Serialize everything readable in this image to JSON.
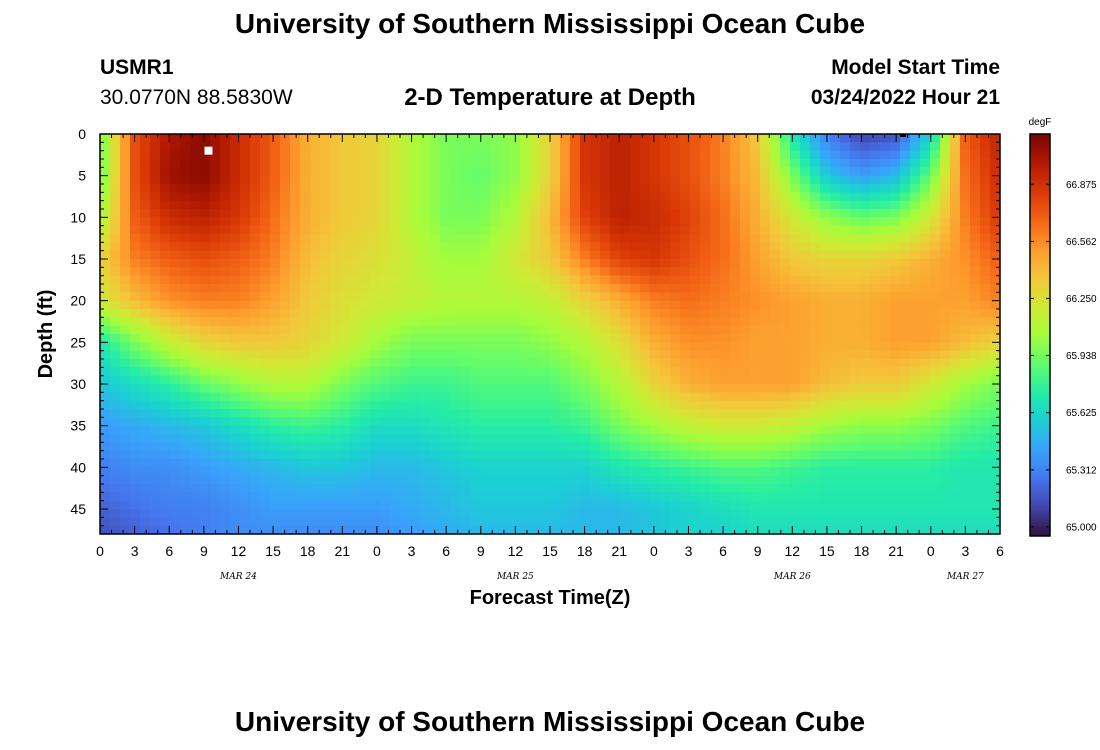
{
  "header": {
    "title": "University of Southern Mississippi Ocean Cube",
    "station_name": "USMR1",
    "station_coords": "30.0770N  88.5830W",
    "subtitle": "2-D Temperature at Depth",
    "model_start_label": "Model Start Time",
    "model_start_time": "03/24/2022 Hour 21"
  },
  "footer": {
    "title": "University of Southern Mississippi Ocean Cube"
  },
  "chart_data": {
    "type": "heatmap",
    "title": "2-D Temperature at Depth",
    "xlabel": "Forecast Time(Z)",
    "ylabel": "Depth (ft)",
    "x_tick_labels": [
      "0",
      "3",
      "6",
      "9",
      "12",
      "15",
      "18",
      "21",
      "0",
      "3",
      "6",
      "9",
      "12",
      "15",
      "18",
      "21",
      "0",
      "3",
      "6",
      "9",
      "12",
      "15",
      "18",
      "21",
      "0",
      "3",
      "6"
    ],
    "x_range_hours": [
      0,
      78
    ],
    "date_labels": [
      {
        "label": "MAR 24",
        "hour": 12
      },
      {
        "label": "MAR 25",
        "hour": 36
      },
      {
        "label": "MAR 26",
        "hour": 60
      },
      {
        "label": "MAR 27",
        "hour": 75
      }
    ],
    "y_tick_labels": [
      "0",
      "5",
      "10",
      "15",
      "20",
      "25",
      "30",
      "35",
      "40",
      "45"
    ],
    "y_tick_values": [
      0,
      5,
      10,
      15,
      20,
      25,
      30,
      35,
      40,
      45
    ],
    "ylim": [
      0,
      48
    ],
    "y_inverted": true,
    "colorbar": {
      "unit": "degF",
      "ticks": [
        "66.875",
        "66.562",
        "66.250",
        "65.938",
        "65.625",
        "65.312",
        "65.000"
      ],
      "range": [
        64.95,
        67.15
      ],
      "colors": [
        "#30123b",
        "#4145ab",
        "#4675ed",
        "#39a2fc",
        "#1bcfd4",
        "#24eca6",
        "#61fc6c",
        "#a4fc3b",
        "#d1e834",
        "#f3c63a",
        "#fe9b2d",
        "#f36315",
        "#d93806",
        "#b11901",
        "#7a0402"
      ]
    },
    "temperature_grid": {
      "x_hours": [
        0,
        3,
        6,
        9,
        12,
        15,
        18,
        21,
        24,
        27,
        30,
        33,
        36,
        39,
        42,
        45,
        48,
        51,
        54,
        57,
        60,
        63,
        66,
        69,
        72,
        75,
        78
      ],
      "depths_ft": [
        0,
        5,
        10,
        15,
        20,
        25,
        30,
        35,
        40,
        45,
        48
      ],
      "values_degF": [
        [
          65.9,
          66.75,
          67.0,
          67.1,
          66.9,
          66.7,
          66.45,
          66.35,
          66.3,
          66.1,
          65.95,
          65.95,
          66.0,
          66.3,
          66.85,
          66.95,
          66.85,
          66.75,
          66.6,
          66.35,
          65.7,
          65.3,
          65.1,
          65.15,
          65.6,
          66.7,
          66.95
        ],
        [
          65.9,
          66.75,
          67.05,
          67.1,
          66.9,
          66.7,
          66.45,
          66.35,
          66.3,
          66.1,
          65.95,
          65.9,
          66.0,
          66.3,
          66.85,
          66.95,
          66.85,
          66.75,
          66.6,
          66.4,
          65.95,
          65.55,
          65.4,
          65.5,
          65.9,
          66.65,
          66.9
        ],
        [
          66.05,
          66.7,
          66.9,
          66.95,
          66.85,
          66.65,
          66.45,
          66.35,
          66.3,
          66.1,
          65.95,
          65.95,
          66.1,
          66.4,
          66.8,
          66.95,
          66.9,
          66.8,
          66.65,
          66.45,
          66.2,
          66.0,
          65.9,
          65.95,
          66.2,
          66.6,
          66.85
        ],
        [
          66.3,
          66.6,
          66.7,
          66.75,
          66.7,
          66.6,
          66.4,
          66.3,
          66.25,
          66.15,
          66.05,
          66.05,
          66.2,
          66.35,
          66.6,
          66.8,
          66.85,
          66.75,
          66.65,
          66.5,
          66.35,
          66.3,
          66.3,
          66.35,
          66.45,
          66.55,
          66.7
        ],
        [
          66.2,
          66.4,
          66.55,
          66.6,
          66.6,
          66.5,
          66.35,
          66.25,
          66.2,
          66.15,
          66.1,
          66.1,
          66.1,
          66.15,
          66.3,
          66.45,
          66.6,
          66.65,
          66.6,
          66.55,
          66.5,
          66.45,
          66.45,
          66.5,
          66.5,
          66.5,
          66.6
        ],
        [
          65.7,
          65.95,
          66.15,
          66.3,
          66.35,
          66.35,
          66.3,
          66.2,
          66.05,
          65.95,
          65.95,
          65.95,
          65.95,
          66.0,
          66.1,
          66.25,
          66.45,
          66.55,
          66.55,
          66.5,
          66.5,
          66.45,
          66.45,
          66.5,
          66.5,
          66.4,
          66.3
        ],
        [
          65.55,
          65.65,
          65.75,
          65.9,
          66.0,
          66.1,
          66.1,
          65.95,
          65.85,
          65.8,
          65.8,
          65.85,
          65.85,
          65.85,
          65.95,
          66.1,
          66.3,
          66.45,
          66.5,
          66.5,
          66.5,
          66.4,
          66.35,
          66.35,
          66.2,
          66.05,
          65.95
        ],
        [
          65.4,
          65.45,
          65.5,
          65.55,
          65.65,
          65.75,
          65.8,
          65.75,
          65.65,
          65.65,
          65.7,
          65.75,
          65.75,
          65.75,
          65.8,
          65.95,
          66.05,
          66.15,
          66.2,
          66.2,
          66.15,
          66.05,
          66.0,
          66.0,
          65.95,
          65.85,
          65.8
        ],
        [
          65.3,
          65.35,
          65.35,
          65.4,
          65.45,
          65.5,
          65.55,
          65.55,
          65.5,
          65.5,
          65.55,
          65.6,
          65.6,
          65.6,
          65.6,
          65.7,
          65.75,
          65.8,
          65.85,
          65.85,
          65.8,
          65.75,
          65.75,
          65.75,
          65.75,
          65.7,
          65.7
        ],
        [
          65.2,
          65.25,
          65.3,
          65.3,
          65.35,
          65.4,
          65.4,
          65.4,
          65.4,
          65.45,
          65.5,
          65.55,
          65.55,
          65.55,
          65.5,
          65.5,
          65.55,
          65.6,
          65.65,
          65.7,
          65.7,
          65.7,
          65.7,
          65.7,
          65.7,
          65.7,
          65.7
        ],
        [
          65.15,
          65.2,
          65.25,
          65.3,
          65.35,
          65.35,
          65.35,
          65.35,
          65.35,
          65.4,
          65.45,
          65.5,
          65.5,
          65.5,
          65.5,
          65.5,
          65.55,
          65.6,
          65.6,
          65.65,
          65.65,
          65.65,
          65.65,
          65.65,
          65.65,
          65.65,
          65.65
        ]
      ]
    },
    "markers": [
      {
        "type": "white-square",
        "hour": 9.4,
        "depth_ft": 2
      },
      {
        "type": "black-dash",
        "hour": 69.6,
        "depth_ft": 0
      }
    ]
  }
}
